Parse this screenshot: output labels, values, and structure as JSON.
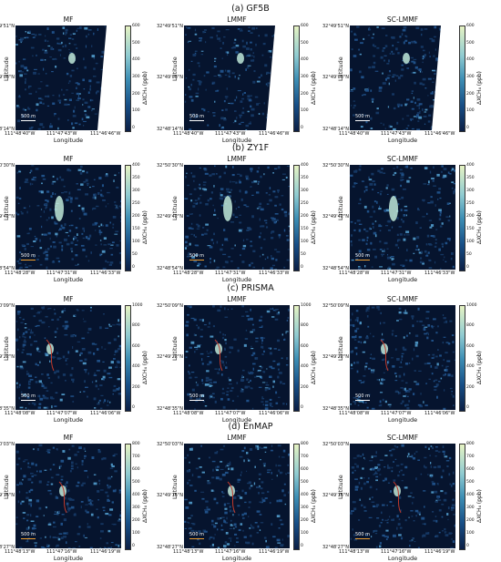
{
  "rows": [
    {
      "title": "(a) GF5B",
      "cbar_ticks": [
        "600",
        "500",
        "400",
        "300",
        "200",
        "100",
        "0"
      ],
      "lat_top": "32°49'51\"N",
      "lat_mid": "32°49'03\"N",
      "lat_bot": "32°48'14\"N",
      "lon_left": "111°48'40\"W",
      "lon_mid": "111°47'43\"W",
      "lon_right": "111°46'46\"W",
      "wedge": true
    },
    {
      "title": "(b) ZY1F",
      "cbar_ticks": [
        "400",
        "350",
        "300",
        "250",
        "200",
        "150",
        "100",
        "50",
        "0"
      ],
      "lat_top": "32°50'30\"N",
      "lat_mid": "32°49'42\"N",
      "lat_bot": "32°48'54\"N",
      "lon_left": "111°48'28\"W",
      "lon_mid": "111°47'31\"W",
      "lon_right": "111°46'33\"W",
      "wedge": false
    },
    {
      "title": "(c) PRISMA",
      "cbar_ticks": [
        "1000",
        "800",
        "600",
        "400",
        "200",
        "0"
      ],
      "lat_top": "32°50'09\"N",
      "lat_mid": "32°49'22\"N",
      "lat_bot": "32°48'35\"N",
      "lon_left": "111°48'08\"W",
      "lon_mid": "111°47'07\"W",
      "lon_right": "111°46'06\"W",
      "wedge": false
    },
    {
      "title": "(d) EnMAP",
      "cbar_ticks": [
        "800",
        "700",
        "600",
        "500",
        "400",
        "300",
        "200",
        "100",
        "0"
      ],
      "lat_top": "32°50'03\"N",
      "lat_mid": "32°49'15\"N",
      "lat_bot": "32°48'27\"N",
      "lon_left": "111°48'13\"W",
      "lon_mid": "111°47'16\"W",
      "lon_right": "111°46'19\"W",
      "wedge": false
    }
  ],
  "methods": [
    "MF",
    "LMMF",
    "SC-LMMF"
  ],
  "axis": {
    "xlabel": "Longitude",
    "ylabel": "Latitude",
    "cunit": "ΔXCH₄ (ppb)",
    "scale": "500 m"
  },
  "colors": {
    "map_bg": "#06142e",
    "plume": "#bfe8d8",
    "mask": "#c0392b"
  }
}
